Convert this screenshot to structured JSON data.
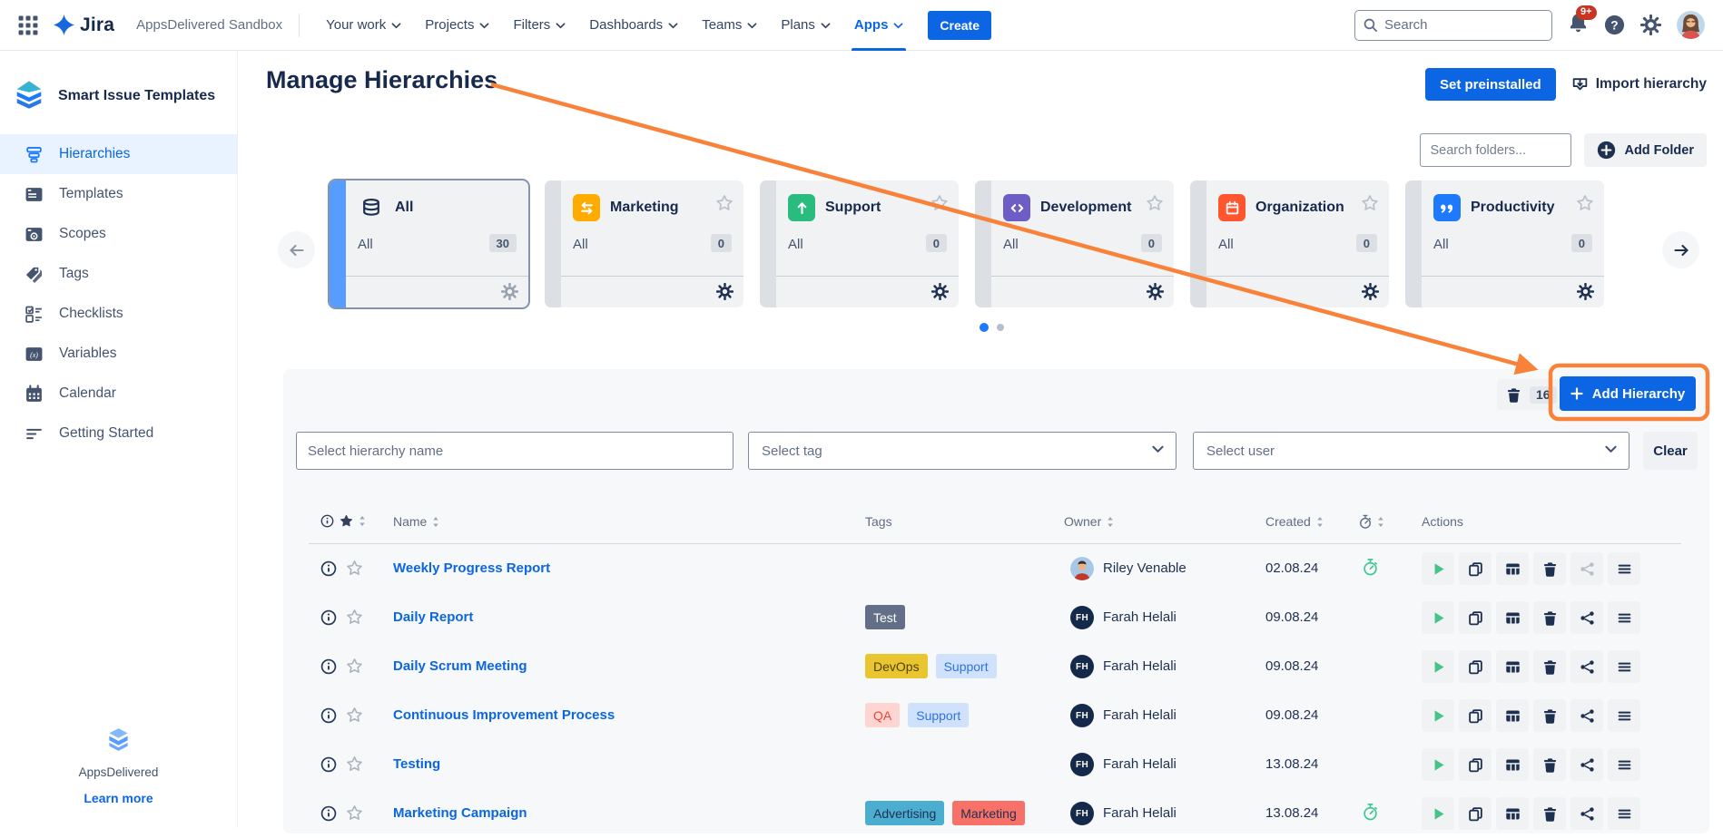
{
  "topnav": {
    "logo_text": "Jira",
    "site_name": "AppsDelivered Sandbox",
    "menus": [
      {
        "label": "Your work",
        "active": false
      },
      {
        "label": "Projects",
        "active": false
      },
      {
        "label": "Filters",
        "active": false
      },
      {
        "label": "Dashboards",
        "active": false
      },
      {
        "label": "Teams",
        "active": false
      },
      {
        "label": "Plans",
        "active": false
      },
      {
        "label": "Apps",
        "active": true
      }
    ],
    "create_label": "Create",
    "search_placeholder": "Search",
    "notification_badge": "9+"
  },
  "sidebar": {
    "app_title": "Smart Issue Templates",
    "items": [
      {
        "label": "Hierarchies",
        "icon": "hierarchies",
        "active": true
      },
      {
        "label": "Templates",
        "icon": "templates",
        "active": false
      },
      {
        "label": "Scopes",
        "icon": "scopes",
        "active": false
      },
      {
        "label": "Tags",
        "icon": "tags",
        "active": false
      },
      {
        "label": "Checklists",
        "icon": "checklists",
        "active": false
      },
      {
        "label": "Variables",
        "icon": "variables",
        "active": false
      },
      {
        "label": "Calendar",
        "icon": "calendar",
        "active": false
      },
      {
        "label": "Getting Started",
        "icon": "getting-started",
        "active": false
      }
    ],
    "footer_brand": "AppsDelivered",
    "footer_link": "Learn more"
  },
  "page": {
    "title": "Manage Hierarchies",
    "set_preinstalled_label": "Set preinstalled",
    "import_hierarchy_label": "Import hierarchy"
  },
  "folders": {
    "search_placeholder": "Search folders...",
    "add_folder_label": "Add Folder",
    "cards": [
      {
        "name": "All",
        "scope": "All",
        "count": "30",
        "icon": "stack",
        "icon_bg": "",
        "selected": true,
        "star": false
      },
      {
        "name": "Marketing",
        "scope": "All",
        "count": "0",
        "icon": "swap",
        "icon_bg": "#FFAB00",
        "selected": false,
        "star": true
      },
      {
        "name": "Support",
        "scope": "All",
        "count": "0",
        "icon": "arrow-up",
        "icon_bg": "#2ABB7F",
        "selected": false,
        "star": true
      },
      {
        "name": "Development",
        "scope": "All",
        "count": "0",
        "icon": "code",
        "icon_bg": "#6E5DC6",
        "selected": false,
        "star": true
      },
      {
        "name": "Organization",
        "scope": "All",
        "count": "0",
        "icon": "calendar-solid",
        "icon_bg": "#FF5630",
        "selected": false,
        "star": true
      },
      {
        "name": "Productivity",
        "scope": "All",
        "count": "0",
        "icon": "quote",
        "icon_bg": "#1D7AFC",
        "selected": false,
        "star": true
      }
    ],
    "pagination": {
      "pages": 2,
      "active_page": 1
    }
  },
  "hierarchy_panel": {
    "trash_count": "16",
    "add_hierarchy_label": "Add Hierarchy",
    "filters": {
      "name_placeholder": "Select hierarchy name",
      "tag_placeholder": "Select tag",
      "user_placeholder": "Select user",
      "clear_label": "Clear"
    },
    "table": {
      "headers": {
        "name": "Name",
        "tags": "Tags",
        "owner": "Owner",
        "created": "Created",
        "actions": "Actions"
      },
      "rows": [
        {
          "name": "Weekly Progress Report",
          "tags": [],
          "owner": "Riley Venable",
          "avatar_type": "photo",
          "avatar_initials": "",
          "created": "02.08.24",
          "timer": true,
          "share_disabled": true
        },
        {
          "name": "Daily Report",
          "tags": [
            {
              "label": "Test",
              "bg": "#626F86",
              "fg": "#FFFFFF"
            }
          ],
          "owner": "Farah Helali",
          "avatar_type": "initials",
          "avatar_initials": "FH",
          "created": "09.08.24",
          "timer": false,
          "share_disabled": false
        },
        {
          "name": "Daily Scrum Meeting",
          "tags": [
            {
              "label": "DevOps",
              "bg": "#E9C62F",
              "fg": "#533F04"
            },
            {
              "label": "Support",
              "bg": "#CFE1FB",
              "fg": "#2E73E6"
            }
          ],
          "owner": "Farah Helali",
          "avatar_type": "initials",
          "avatar_initials": "FH",
          "created": "09.08.24",
          "timer": false,
          "share_disabled": false
        },
        {
          "name": "Continuous Improvement Process",
          "tags": [
            {
              "label": "QA",
              "bg": "#FFD5D2",
              "fg": "#E2483D"
            },
            {
              "label": "Support",
              "bg": "#CFE1FB",
              "fg": "#2E73E6"
            }
          ],
          "owner": "Farah Helali",
          "avatar_type": "initials",
          "avatar_initials": "FH",
          "created": "09.08.24",
          "timer": false,
          "share_disabled": false
        },
        {
          "name": "Testing",
          "tags": [],
          "owner": "Farah Helali",
          "avatar_type": "initials",
          "avatar_initials": "FH",
          "created": "13.08.24",
          "timer": false,
          "share_disabled": false
        },
        {
          "name": "Marketing Campaign",
          "tags": [
            {
              "label": "Advertising",
              "bg": "#4BAED1",
              "fg": "#1E3050"
            },
            {
              "label": "Marketing",
              "bg": "#F87168",
              "fg": "#1E3050"
            }
          ],
          "owner": "Farah Helali",
          "avatar_type": "initials",
          "avatar_initials": "FH",
          "created": "13.08.24",
          "timer": true,
          "share_disabled": false
        }
      ]
    }
  },
  "annotation": {
    "color": "#F8823A"
  }
}
